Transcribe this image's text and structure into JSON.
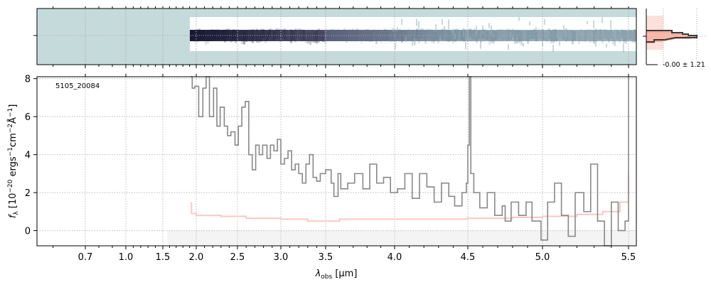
{
  "chart_data": {
    "type": "line",
    "title": "",
    "annotation": "5105_20084",
    "xlabel": "λobs [µm]",
    "xlabel_parts": {
      "sym": "λ",
      "sub": "obs",
      "unit": " [µm]"
    },
    "ylabel_parts": {
      "sym": "f",
      "sub": "λ",
      "pre": " [10",
      "exp1": "−20",
      "mid": " ergs",
      "exp2": "−1",
      "mid2": "cm",
      "exp3": "−2",
      "mid3": "Å",
      "exp4": "−1",
      "end": "]"
    },
    "xlim": [
      0.55,
      5.53
    ],
    "ylim": [
      -0.8,
      8.1
    ],
    "grid": true,
    "x_ticks": [
      "0.7",
      "1.0",
      "1.5",
      "2.0",
      "2.5",
      "3.0",
      "3.5",
      "4.0",
      "4.5",
      "5.0",
      "5.5"
    ],
    "x_tick_values": [
      0.7,
      1.0,
      1.5,
      2.0,
      2.5,
      3.0,
      3.5,
      4.0,
      4.5,
      5.0,
      5.5
    ],
    "y_ticks": [
      "0",
      "2",
      "4",
      "6",
      "8"
    ],
    "y_tick_values": [
      0,
      2,
      4,
      6,
      8
    ],
    "series": [
      {
        "name": "flux",
        "color": "#888888",
        "x": [
          1.915,
          1.94,
          1.98,
          2.03,
          2.08,
          2.12,
          2.16,
          2.21,
          2.25,
          2.29,
          2.34,
          2.38,
          2.42,
          2.47,
          2.51,
          2.55,
          2.59,
          2.63,
          2.67,
          2.71,
          2.75,
          2.79,
          2.84,
          2.88,
          2.92,
          2.96,
          3.0,
          3.04,
          3.08,
          3.12,
          3.16,
          3.2,
          3.24,
          3.28,
          3.32,
          3.36,
          3.4,
          3.44,
          3.5,
          3.54,
          3.56,
          3.59,
          3.61,
          3.66,
          3.71,
          3.77,
          3.82,
          3.87,
          3.92,
          3.97,
          4.02,
          4.07,
          4.12,
          4.17,
          4.22,
          4.27,
          4.32,
          4.37,
          4.41,
          4.46,
          4.49,
          4.5,
          4.51,
          4.52,
          4.54,
          4.58,
          4.63,
          4.68,
          4.73,
          4.75,
          4.79,
          4.84,
          4.89,
          4.93,
          4.99,
          5.03,
          5.07,
          5.11,
          5.15,
          5.19,
          5.24,
          5.28,
          5.32,
          5.36,
          5.4,
          5.44,
          5.48,
          5.5
        ],
        "y": [
          8.1,
          7.5,
          7.6,
          6.0,
          7.5,
          8.1,
          6.0,
          7.5,
          5.5,
          6.5,
          5.5,
          5.0,
          5.2,
          4.5,
          5.5,
          6.5,
          6.8,
          4.0,
          3.2,
          4.5,
          4.0,
          4.5,
          3.8,
          4.5,
          4.2,
          4.8,
          3.5,
          3.8,
          4.2,
          3.2,
          3.5,
          3.0,
          2.5,
          3.5,
          4.0,
          2.8,
          2.6,
          3.0,
          3.2,
          2.5,
          1.8,
          3.0,
          2.2,
          2.5,
          3.0,
          2.2,
          3.5,
          2.5,
          2.8,
          2.0,
          2.2,
          3.0,
          1.7,
          3.0,
          2.3,
          1.5,
          2.5,
          1.8,
          1.3,
          2.0,
          2.5,
          4.5,
          8.1,
          3.0,
          2.0,
          1.2,
          2.0,
          0.8,
          1.3,
          0.5,
          1.5,
          0.8,
          1.5,
          0.5,
          -0.5,
          1.5,
          2.5,
          0.8,
          -0.3,
          2.0,
          1.0,
          3.5,
          0.5,
          -0.8,
          1.5,
          0.0,
          0.5,
          8.1
        ]
      },
      {
        "name": "error",
        "color": "#f8c8c4",
        "x": [
          1.915,
          1.93,
          2.0,
          2.3,
          2.6,
          3.0,
          3.3,
          3.6,
          4.0,
          4.5,
          4.8,
          5.0,
          5.2,
          5.35,
          5.45,
          5.5
        ],
        "y": [
          1.45,
          0.9,
          0.8,
          0.75,
          0.65,
          0.6,
          0.5,
          0.6,
          0.6,
          0.65,
          0.7,
          0.75,
          0.85,
          1.0,
          1.5,
          3.0
        ]
      }
    ],
    "hist_panel": {
      "label": "-0.00 ± 1.21"
    }
  }
}
